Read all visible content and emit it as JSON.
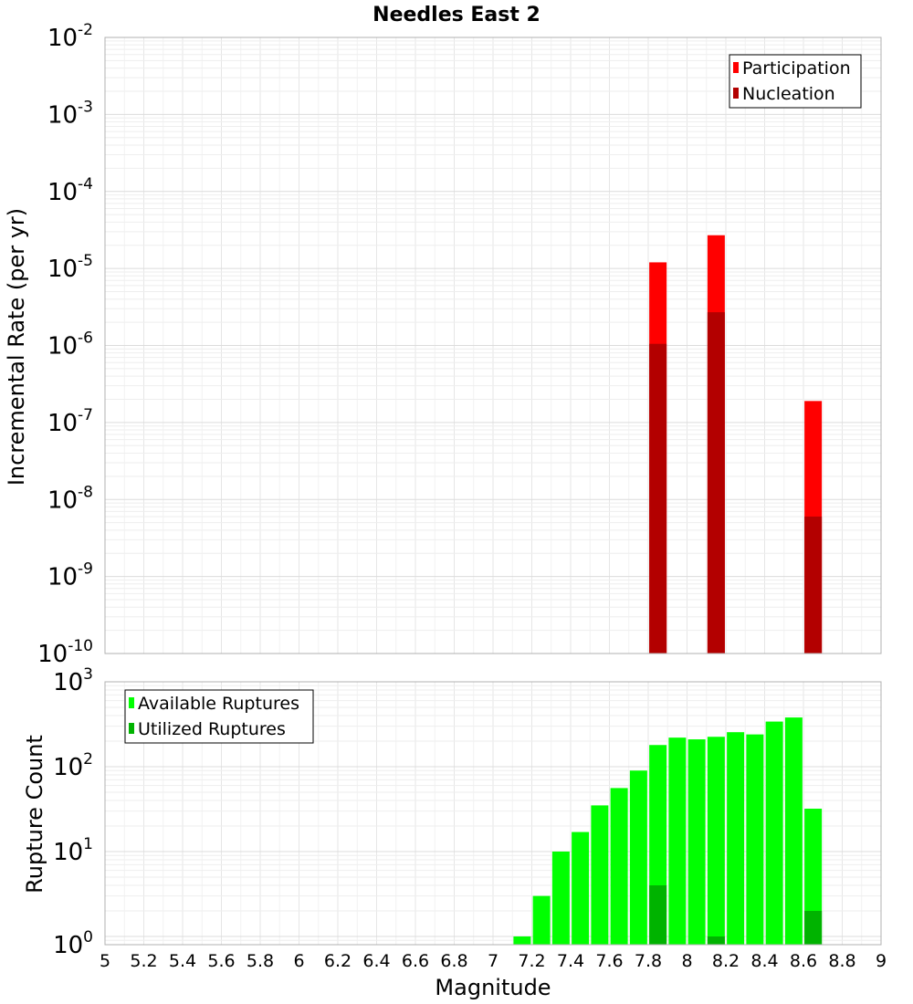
{
  "chart_data": [
    {
      "type": "bar",
      "title": "Needles East 2",
      "xlabel": "",
      "ylabel": "Incremental Rate (per yr)",
      "yscale": "log",
      "ylim": [
        1e-10,
        0.01
      ],
      "xlim": [
        5,
        9
      ],
      "legend_position": "top-right",
      "overlay": true,
      "y_tick_exponents": [
        "-2",
        "-3",
        "-4",
        "-5",
        "-6",
        "-7",
        "-8",
        "-9",
        "-10"
      ],
      "x": [
        7.85,
        8.15,
        8.65
      ],
      "series": [
        {
          "name": "Participation",
          "color": "#ff0000",
          "values": [
            1.2e-05,
            2.7e-05,
            1.9e-07
          ]
        },
        {
          "name": "Nucleation",
          "color": "#b30000",
          "values": [
            1.05e-06,
            2.7e-06,
            6e-09
          ]
        }
      ]
    },
    {
      "type": "bar",
      "title": "",
      "xlabel": "Magnitude",
      "ylabel": "Rupture Count",
      "yscale": "log",
      "ylim": [
        0.8,
        1000
      ],
      "xlim": [
        5,
        9
      ],
      "legend_position": "top-left",
      "overlay": true,
      "y_tick_exponents": [
        "3",
        "2",
        "1",
        "0"
      ],
      "x_tick_labels": [
        "5",
        "5.2",
        "5.4",
        "5.6",
        "5.8",
        "6",
        "6.2",
        "6.4",
        "6.6",
        "6.8",
        "7",
        "7.2",
        "7.4",
        "7.6",
        "7.8",
        "8",
        "8.2",
        "8.4",
        "8.6",
        "8.8",
        "9"
      ],
      "x": [
        7.15,
        7.25,
        7.35,
        7.45,
        7.55,
        7.65,
        7.75,
        7.85,
        7.95,
        8.05,
        8.15,
        8.25,
        8.35,
        8.45,
        8.55,
        8.65
      ],
      "series": [
        {
          "name": "Available Ruptures",
          "color": "#00ff00",
          "values": [
            1,
            3,
            10,
            17,
            35,
            56,
            90,
            180,
            220,
            210,
            225,
            255,
            240,
            340,
            380,
            32
          ]
        },
        {
          "name": "Utilized Ruptures",
          "color": "#00b300",
          "values": [
            0,
            0,
            0,
            0,
            0,
            0,
            0,
            4,
            0,
            0,
            1,
            0,
            0,
            0,
            0,
            2
          ]
        }
      ]
    }
  ]
}
